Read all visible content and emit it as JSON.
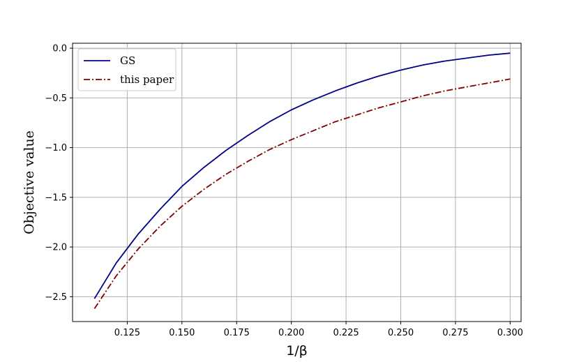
{
  "chart_data": {
    "type": "line",
    "title": "",
    "xlabel": "1/β",
    "ylabel": "Objective value",
    "xlim": [
      0.1,
      0.305
    ],
    "ylim": [
      -2.75,
      0.05
    ],
    "grid": true,
    "legend_position": "top-left",
    "x_ticks": [
      0.125,
      0.15,
      0.175,
      0.2,
      0.225,
      0.25,
      0.275,
      0.3
    ],
    "x_tick_labels": [
      "0.125",
      "0.150",
      "0.175",
      "0.200",
      "0.225",
      "0.250",
      "0.275",
      "0.300"
    ],
    "y_ticks": [
      0.0,
      -0.5,
      -1.0,
      -1.5,
      -2.0,
      -2.5
    ],
    "y_tick_labels": [
      "0.0",
      "−0.5",
      "−1.0",
      "−1.5",
      "−2.0",
      "−2.5"
    ],
    "x": [
      0.11,
      0.12,
      0.13,
      0.14,
      0.15,
      0.16,
      0.17,
      0.18,
      0.19,
      0.2,
      0.21,
      0.22,
      0.23,
      0.24,
      0.25,
      0.26,
      0.27,
      0.28,
      0.29,
      0.3
    ],
    "series": [
      {
        "name": "GS",
        "color": "#00008b",
        "style": "solid",
        "values": [
          -2.52,
          -2.16,
          -1.87,
          -1.62,
          -1.39,
          -1.2,
          -1.03,
          -0.88,
          -0.74,
          -0.62,
          -0.52,
          -0.43,
          -0.35,
          -0.28,
          -0.22,
          -0.17,
          -0.13,
          -0.1,
          -0.07,
          -0.05
        ]
      },
      {
        "name": "this paper",
        "color": "#800000",
        "style": "dashdot",
        "values": [
          -2.62,
          -2.29,
          -2.02,
          -1.79,
          -1.59,
          -1.42,
          -1.27,
          -1.14,
          -1.02,
          -0.92,
          -0.83,
          -0.74,
          -0.67,
          -0.6,
          -0.54,
          -0.48,
          -0.43,
          -0.39,
          -0.35,
          -0.31
        ]
      }
    ]
  }
}
